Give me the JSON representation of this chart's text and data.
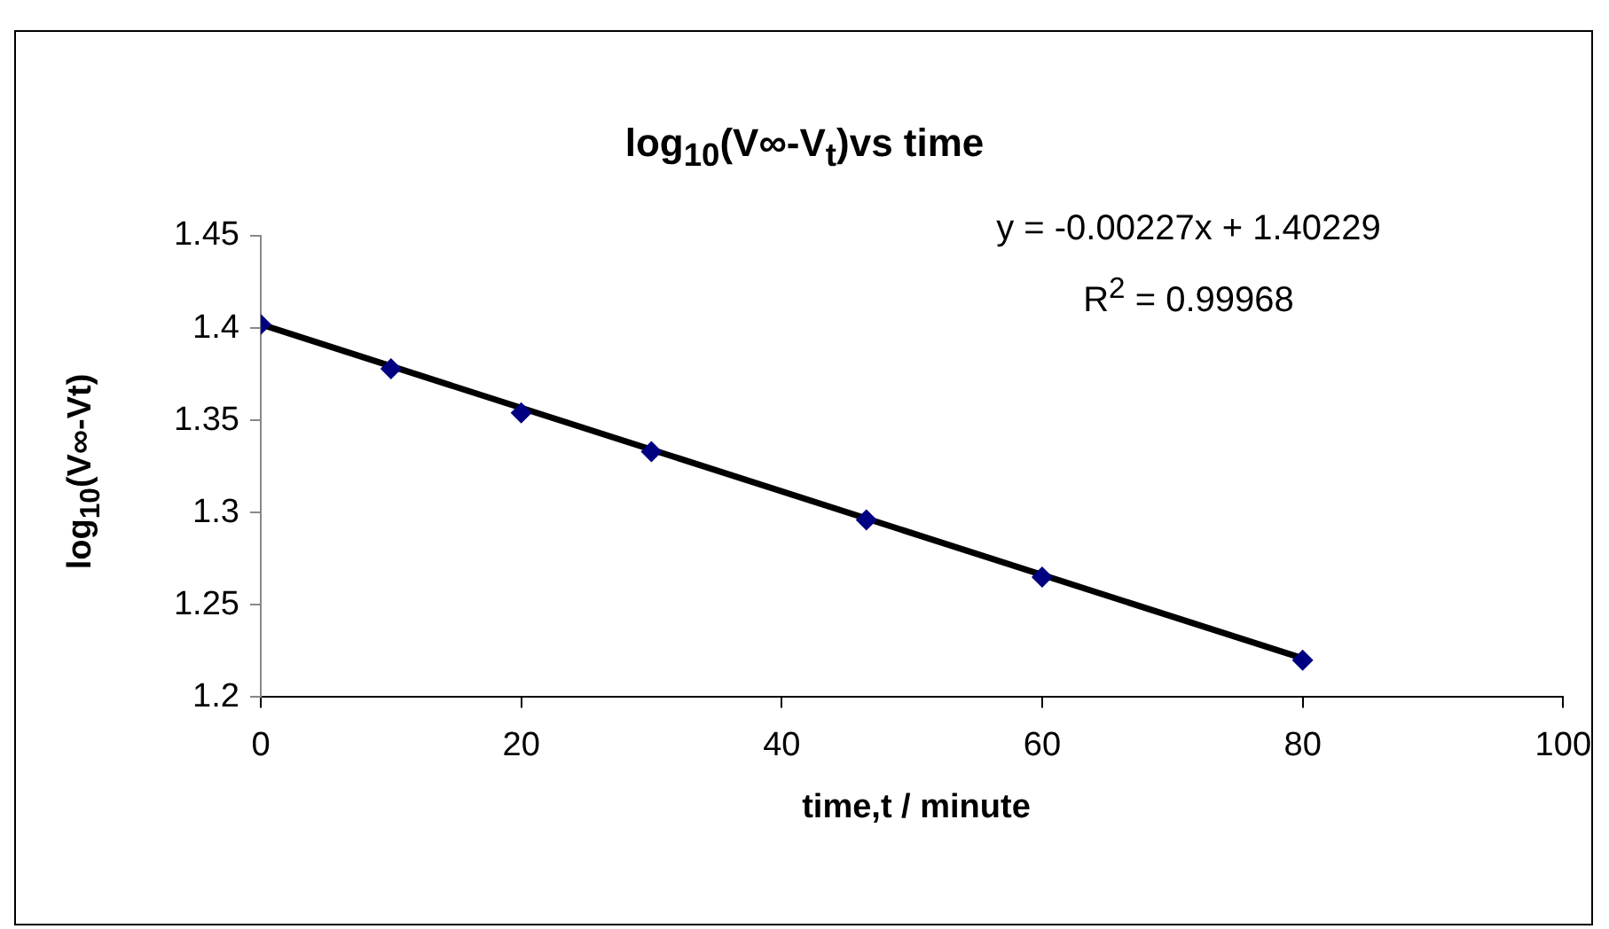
{
  "chart_data": {
    "type": "scatter",
    "title": "log$_{10}$(V∞-V$_{t}$)vs time",
    "xlabel": "time,t / minute",
    "ylabel": "log$_{10}$(V∞-Vt)",
    "xlim": [
      0,
      100
    ],
    "xticks": [
      0,
      20,
      40,
      60,
      80,
      100
    ],
    "ylim": [
      1.2,
      1.45
    ],
    "yticks": [
      1.2,
      1.25,
      1.3,
      1.35,
      1.4,
      1.45
    ],
    "grid": false,
    "legend": false,
    "marker": "diamond",
    "series": [
      {
        "type": "scatter",
        "color": "#000080",
        "x": [
          0,
          10,
          20,
          30,
          46.5,
          60,
          80
        ],
        "values": [
          1.402,
          1.378,
          1.354,
          1.333,
          1.296,
          1.265,
          1.22
        ]
      },
      {
        "type": "line",
        "color": "#000000",
        "marker": "none",
        "x": [
          0,
          80
        ],
        "values": [
          1.402,
          1.221
        ]
      }
    ],
    "annotations": [
      "y = -0.00227x + 1.40229",
      "R$^{2}$ = 0.99968"
    ]
  }
}
